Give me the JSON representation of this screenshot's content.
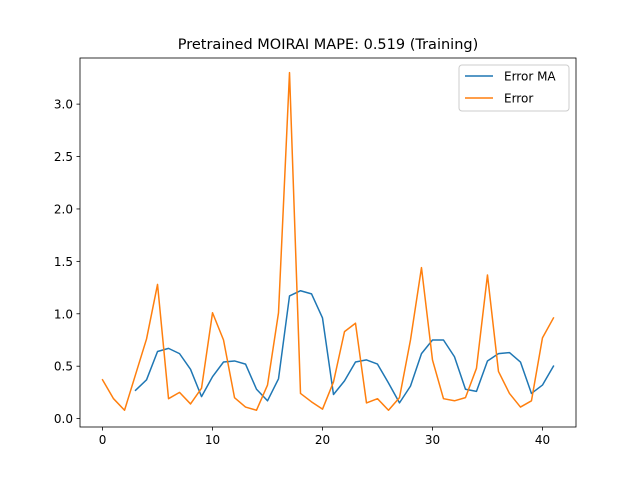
{
  "chart_data": {
    "type": "line",
    "title": "Pretrained MOIRAI MAPE: 0.519 (Training)",
    "xlabel": "",
    "ylabel": "",
    "xlim": [
      -2.05,
      43.05
    ],
    "ylim": [
      -0.08,
      3.44
    ],
    "xticks": [
      0,
      10,
      20,
      30,
      40
    ],
    "xtick_labels": [
      "0",
      "10",
      "20",
      "30",
      "40"
    ],
    "yticks": [
      0.0,
      0.5,
      1.0,
      1.5,
      2.0,
      2.5,
      3.0
    ],
    "ytick_labels": [
      "0.0",
      "0.5",
      "1.0",
      "1.5",
      "2.0",
      "2.5",
      "3.0"
    ],
    "grid": false,
    "legend_position": "upper right",
    "series": [
      {
        "name": "Error MA",
        "color": "#1f77b4",
        "x": [
          3,
          4,
          5,
          6,
          7,
          8,
          9,
          10,
          11,
          12,
          13,
          14,
          15,
          16,
          17,
          18,
          19,
          20,
          21,
          22,
          23,
          24,
          25,
          26,
          27,
          28,
          29,
          30,
          31,
          32,
          33,
          34,
          35,
          36,
          37,
          38,
          39,
          40,
          41
        ],
        "values": [
          0.27,
          0.37,
          0.64,
          0.67,
          0.62,
          0.47,
          0.21,
          0.4,
          0.54,
          0.55,
          0.52,
          0.28,
          0.17,
          0.38,
          1.17,
          1.22,
          1.19,
          0.96,
          0.23,
          0.36,
          0.54,
          0.56,
          0.52,
          0.34,
          0.15,
          0.31,
          0.62,
          0.75,
          0.75,
          0.59,
          0.28,
          0.26,
          0.55,
          0.62,
          0.63,
          0.54,
          0.24,
          0.32,
          0.5
        ]
      },
      {
        "name": "Error",
        "color": "#ff7f0e",
        "x": [
          0,
          1,
          2,
          3,
          4,
          5,
          6,
          7,
          8,
          9,
          10,
          11,
          12,
          13,
          14,
          15,
          16,
          17,
          18,
          19,
          20,
          21,
          22,
          23,
          24,
          25,
          26,
          27,
          28,
          29,
          30,
          31,
          32,
          33,
          34,
          35,
          36,
          37,
          38,
          39,
          40,
          41
        ],
        "values": [
          0.37,
          0.19,
          0.08,
          0.42,
          0.76,
          1.28,
          0.19,
          0.25,
          0.14,
          0.29,
          1.01,
          0.75,
          0.2,
          0.11,
          0.08,
          0.32,
          1.01,
          3.3,
          0.24,
          0.16,
          0.09,
          0.35,
          0.83,
          0.91,
          0.15,
          0.19,
          0.08,
          0.2,
          0.75,
          1.44,
          0.56,
          0.19,
          0.17,
          0.2,
          0.48,
          1.37,
          0.45,
          0.24,
          0.11,
          0.17,
          0.77,
          0.96
        ]
      }
    ]
  }
}
